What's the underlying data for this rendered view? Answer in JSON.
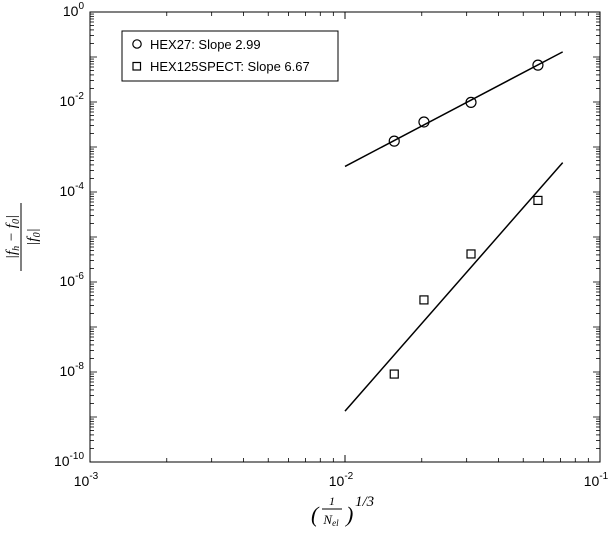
{
  "chart_data": {
    "type": "scatter",
    "xscale": "log",
    "yscale": "log",
    "xlim": [
      0.001,
      0.1
    ],
    "ylim": [
      1e-10,
      1
    ],
    "x_ticks": [
      0.001,
      0.01,
      0.1
    ],
    "y_ticks": [
      1e-10,
      1e-08,
      1e-06,
      0.0001,
      0.01,
      1
    ],
    "x_tick_labels": [
      {
        "base": "10",
        "exp": "-3"
      },
      {
        "base": "10",
        "exp": "-2"
      },
      {
        "base": "10",
        "exp": "-1"
      }
    ],
    "y_tick_labels": [
      {
        "base": "10",
        "exp": "-10"
      },
      {
        "base": "10",
        "exp": "-8"
      },
      {
        "base": "10",
        "exp": "-6"
      },
      {
        "base": "10",
        "exp": "-4"
      },
      {
        "base": "10",
        "exp": "-2"
      },
      {
        "base": "10",
        "exp": "0"
      }
    ],
    "xlabel": "(1/N_el)^(1/3)",
    "ylabel": "|f_h - f_0| / |f_0|",
    "grid": false,
    "legend_position": "top-left",
    "series": [
      {
        "name": "HEX27: Slope 2.99",
        "marker": "circle",
        "x": [
          0.0156,
          0.0204,
          0.0312,
          0.0571
        ],
        "y": [
          0.00135,
          0.0036,
          0.0098,
          0.066
        ],
        "fit": {
          "x": [
            0.01,
            0.0714
          ],
          "y": [
            0.00037,
            0.13
          ]
        }
      },
      {
        "name": "HEX125SPECT: Slope 6.67",
        "marker": "square",
        "x": [
          0.0156,
          0.0204,
          0.0312,
          0.0571
        ],
        "y": [
          9e-09,
          4e-07,
          4.2e-06,
          6.5e-05
        ],
        "fit": {
          "x": [
            0.01,
            0.0714
          ],
          "y": [
            1.35e-09,
            0.00045
          ]
        }
      }
    ]
  }
}
